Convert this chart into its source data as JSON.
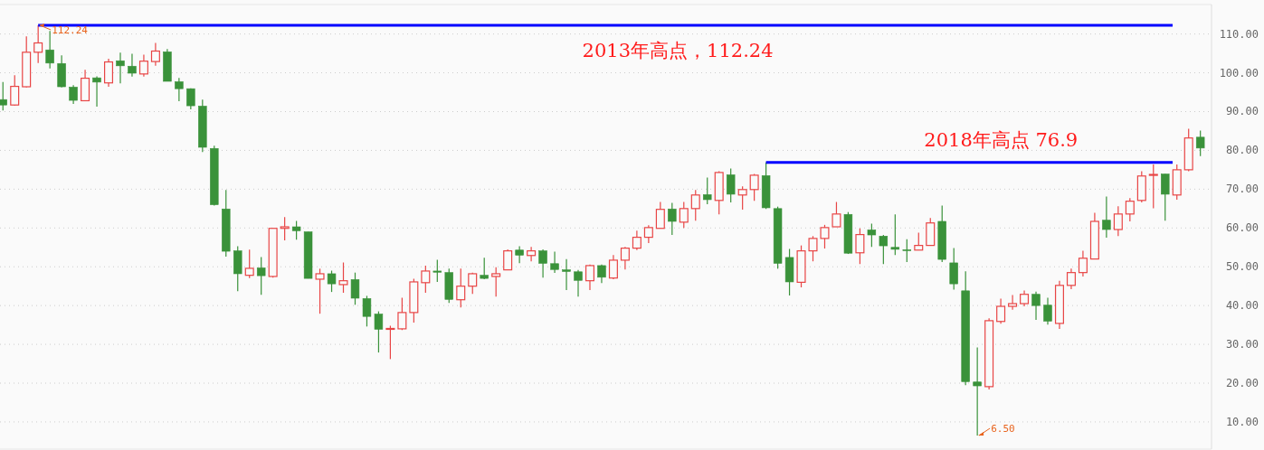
{
  "chart_data": {
    "type": "candlestick",
    "categories": [
      null,
      null,
      null,
      null,
      null,
      null,
      null,
      null,
      null,
      null,
      null,
      null,
      null,
      null,
      null,
      null,
      null,
      null,
      null,
      null,
      null,
      null,
      null,
      null,
      null,
      null,
      null,
      null,
      null,
      null,
      null,
      null,
      null,
      null,
      null,
      null,
      null,
      null,
      null,
      null,
      null,
      null,
      null,
      null,
      null,
      null,
      null,
      null,
      null,
      null,
      null,
      null,
      null,
      null,
      null,
      null,
      null,
      null,
      null,
      null,
      null,
      null,
      null,
      null,
      null,
      null,
      null,
      null,
      null,
      null,
      null,
      null,
      null,
      null,
      null,
      null,
      null,
      null,
      null,
      null,
      null,
      null,
      null,
      null,
      null,
      null,
      null,
      null,
      null,
      null,
      null,
      null,
      null,
      null,
      null,
      null,
      null,
      null,
      null,
      null,
      null,
      null,
      null
    ],
    "ohlc": [
      [
        93.1,
        97.6,
        90.3,
        91.7
      ],
      [
        91.7,
        99.4,
        91.5,
        96.5
      ],
      [
        96.4,
        109.4,
        96.2,
        105.3
      ],
      [
        105.3,
        112.24,
        102.5,
        107.7
      ],
      [
        105.9,
        110.8,
        101.1,
        102.5
      ],
      [
        102.4,
        104.5,
        96.2,
        96.4
      ],
      [
        96.3,
        96.8,
        92.0,
        92.9
      ],
      [
        92.8,
        100.8,
        92.8,
        98.6
      ],
      [
        98.7,
        99.1,
        91.3,
        97.6
      ],
      [
        97.4,
        103.6,
        96.4,
        102.8
      ],
      [
        103.1,
        105.2,
        97.3,
        101.8
      ],
      [
        101.7,
        104.9,
        99.0,
        99.9
      ],
      [
        99.7,
        104.7,
        99.0,
        103.0
      ],
      [
        102.9,
        107.7,
        101.8,
        105.6
      ],
      [
        105.4,
        106.1,
        97.8,
        97.8
      ],
      [
        97.7,
        98.7,
        92.7,
        95.9
      ],
      [
        95.9,
        96.0,
        90.6,
        91.5
      ],
      [
        91.4,
        93.1,
        79.6,
        80.8
      ],
      [
        80.5,
        81.2,
        65.8,
        66.0
      ],
      [
        64.9,
        69.8,
        52.6,
        54.0
      ],
      [
        54.1,
        55.3,
        43.7,
        48.2
      ],
      [
        47.8,
        54.4,
        47.1,
        49.6
      ],
      [
        49.7,
        52.5,
        42.8,
        47.7
      ],
      [
        47.5,
        59.9,
        47.2,
        59.9
      ],
      [
        59.9,
        62.8,
        56.8,
        60.3
      ],
      [
        60.3,
        61.8,
        57.0,
        59.3
      ],
      [
        59.0,
        59.0,
        47.0,
        47.0
      ],
      [
        46.8,
        49.5,
        37.9,
        48.2
      ],
      [
        48.2,
        49.0,
        43.5,
        45.6
      ],
      [
        45.4,
        51.1,
        43.3,
        46.4
      ],
      [
        46.7,
        48.5,
        40.2,
        41.9
      ],
      [
        41.8,
        42.5,
        34.6,
        37.2
      ],
      [
        37.8,
        38.5,
        27.9,
        33.9
      ],
      [
        33.9,
        34.8,
        26.2,
        34.1
      ],
      [
        34.0,
        42.0,
        33.7,
        38.2
      ],
      [
        38.2,
        46.9,
        35.6,
        46.1
      ],
      [
        45.9,
        50.3,
        43.3,
        48.9
      ],
      [
        48.9,
        51.8,
        46.1,
        48.6
      ],
      [
        48.5,
        49.5,
        40.7,
        41.6
      ],
      [
        41.5,
        49.5,
        39.5,
        45.0
      ],
      [
        45.0,
        48.5,
        43.0,
        48.2
      ],
      [
        47.8,
        52.3,
        46.8,
        47.0
      ],
      [
        47.5,
        49.9,
        42.3,
        48.2
      ],
      [
        49.2,
        54.5,
        49.2,
        54.1
      ],
      [
        54.3,
        55.3,
        50.9,
        53.0
      ],
      [
        52.9,
        55.1,
        51.4,
        54.1
      ],
      [
        54.1,
        54.5,
        47.2,
        50.9
      ],
      [
        50.8,
        53.9,
        48.4,
        49.3
      ],
      [
        49.2,
        52.0,
        44.0,
        48.8
      ],
      [
        48.7,
        49.2,
        42.3,
        46.5
      ],
      [
        46.4,
        50.6,
        44.0,
        50.3
      ],
      [
        50.3,
        50.6,
        45.8,
        47.3
      ],
      [
        47.1,
        53.0,
        46.8,
        51.7
      ],
      [
        51.7,
        55.1,
        49.3,
        54.8
      ],
      [
        54.8,
        59.3,
        54.3,
        57.6
      ],
      [
        57.6,
        60.7,
        56.1,
        60.1
      ],
      [
        59.9,
        66.7,
        59.9,
        64.8
      ],
      [
        64.9,
        66.5,
        58.2,
        61.7
      ],
      [
        61.5,
        66.7,
        60.0,
        65.0
      ],
      [
        65.0,
        69.8,
        61.9,
        68.5
      ],
      [
        68.6,
        73.0,
        66.1,
        67.3
      ],
      [
        67.1,
        74.6,
        63.5,
        74.3
      ],
      [
        73.7,
        75.3,
        66.6,
        68.7
      ],
      [
        68.5,
        70.7,
        64.7,
        69.9
      ],
      [
        69.9,
        73.9,
        67.0,
        73.6
      ],
      [
        73.5,
        76.9,
        64.9,
        65.2
      ],
      [
        65.0,
        65.5,
        49.5,
        50.9
      ],
      [
        52.4,
        54.6,
        42.6,
        46.1
      ],
      [
        46.0,
        55.5,
        44.7,
        54.1
      ],
      [
        54.1,
        57.9,
        51.4,
        57.3
      ],
      [
        57.3,
        60.8,
        54.7,
        60.1
      ],
      [
        60.3,
        66.7,
        60.3,
        63.6
      ],
      [
        63.5,
        64.1,
        53.3,
        53.5
      ],
      [
        53.6,
        59.9,
        50.7,
        58.3
      ],
      [
        59.5,
        61.1,
        55.1,
        58.2
      ],
      [
        57.9,
        58.2,
        50.7,
        55.4
      ],
      [
        55.0,
        63.5,
        53.0,
        54.5
      ],
      [
        54.4,
        57.1,
        51.2,
        54.2
      ],
      [
        54.3,
        58.8,
        54.3,
        55.5
      ],
      [
        55.5,
        62.6,
        55.5,
        61.3
      ],
      [
        61.7,
        65.8,
        51.2,
        51.9
      ],
      [
        51.0,
        54.8,
        44.1,
        45.6
      ],
      [
        43.8,
        48.8,
        19.5,
        20.4
      ],
      [
        20.3,
        29.2,
        6.5,
        19.3
      ],
      [
        19.1,
        36.7,
        18.4,
        36.1
      ],
      [
        35.9,
        41.8,
        35.3,
        39.8
      ],
      [
        39.8,
        42.7,
        38.9,
        40.5
      ],
      [
        40.5,
        43.9,
        39.8,
        42.9
      ],
      [
        42.9,
        43.6,
        36.3,
        40.0
      ],
      [
        40.1,
        42.0,
        35.1,
        36.0
      ],
      [
        35.4,
        46.4,
        34.0,
        45.2
      ],
      [
        45.2,
        49.5,
        44.2,
        48.5
      ],
      [
        48.5,
        54.1,
        47.5,
        52.2
      ],
      [
        52.0,
        63.9,
        52.0,
        61.7
      ],
      [
        62.0,
        68.1,
        57.5,
        59.6
      ],
      [
        59.6,
        65.6,
        57.9,
        63.6
      ],
      [
        63.6,
        67.7,
        61.7,
        66.9
      ],
      [
        67.1,
        74.6,
        66.6,
        73.4
      ],
      [
        73.6,
        76.4,
        65.1,
        73.8
      ],
      [
        73.9,
        73.9,
        61.9,
        68.7
      ],
      [
        68.5,
        76.4,
        67.3,
        75.0
      ],
      [
        75.0,
        85.6,
        74.6,
        83.2
      ],
      [
        83.4,
        85.1,
        78.5,
        80.6
      ]
    ],
    "colors": [
      "#3a923a",
      "#e84545",
      "#e84545",
      "#e84545",
      "#3a923a",
      "#3a923a",
      "#3a923a",
      "#e84545",
      "#3a923a",
      "#e84545",
      "#3a923a",
      "#3a923a",
      "#e84545",
      "#e84545",
      "#3a923a",
      "#3a923a",
      "#3a923a",
      "#3a923a",
      "#3a923a",
      "#3a923a",
      "#3a923a",
      "#e84545",
      "#3a923a",
      "#e84545",
      "#e84545",
      "#3a923a",
      "#3a923a",
      "#e84545",
      "#3a923a",
      "#e84545",
      "#3a923a",
      "#3a923a",
      "#3a923a",
      "#e84545",
      "#e84545",
      "#e84545",
      "#e84545",
      "#3a923a",
      "#3a923a",
      "#e84545",
      "#e84545",
      "#3a923a",
      "#e84545",
      "#e84545",
      "#3a923a",
      "#e84545",
      "#3a923a",
      "#3a923a",
      "#3a923a",
      "#3a923a",
      "#e84545",
      "#3a923a",
      "#e84545",
      "#e84545",
      "#e84545",
      "#e84545",
      "#e84545",
      "#3a923a",
      "#e84545",
      "#e84545",
      "#3a923a",
      "#e84545",
      "#3a923a",
      "#e84545",
      "#e84545",
      "#3a923a",
      "#3a923a",
      "#3a923a",
      "#e84545",
      "#e84545",
      "#e84545",
      "#e84545",
      "#3a923a",
      "#e84545",
      "#3a923a",
      "#3a923a",
      "#3a923a",
      "#3a923a",
      "#e84545",
      "#e84545",
      "#3a923a",
      "#3a923a",
      "#3a923a",
      "#3a923a",
      "#e84545",
      "#e84545",
      "#e84545",
      "#e84545",
      "#3a923a",
      "#3a923a",
      "#e84545",
      "#e84545",
      "#e84545",
      "#e84545",
      "#3a923a",
      "#e84545",
      "#e84545",
      "#e84545",
      "#e84545",
      "#3a923a",
      "#e84545",
      "#e84545",
      "#3a923a"
    ],
    "ylim": [
      3,
      117.6
    ],
    "yticks": [
      {
        "value": 10,
        "label": "10.00"
      },
      {
        "value": 20,
        "label": "20.00"
      },
      {
        "value": 30,
        "label": "30.00"
      },
      {
        "value": 40,
        "label": "40.00"
      },
      {
        "value": 50,
        "label": "50.00"
      },
      {
        "value": 60,
        "label": "60.00"
      },
      {
        "value": 70,
        "label": "70.00"
      },
      {
        "value": 80,
        "label": "80.00"
      },
      {
        "value": 90,
        "label": "90.00"
      },
      {
        "value": 100,
        "label": "100.00"
      },
      {
        "value": 110,
        "label": "110.00"
      }
    ],
    "grid": "y",
    "tick_labels": "y",
    "ref_lines": [
      {
        "axis": "y",
        "value": 112.24,
        "label": "2013年高点，112.24",
        "color": "#0000ff"
      },
      {
        "axis": "y",
        "value": 76.9,
        "label": "2018年高点 76.9",
        "color": "#0000ff"
      }
    ],
    "annotations": [
      {
        "text": "112.24",
        "y": 112.24
      },
      "6.50"
    ]
  }
}
